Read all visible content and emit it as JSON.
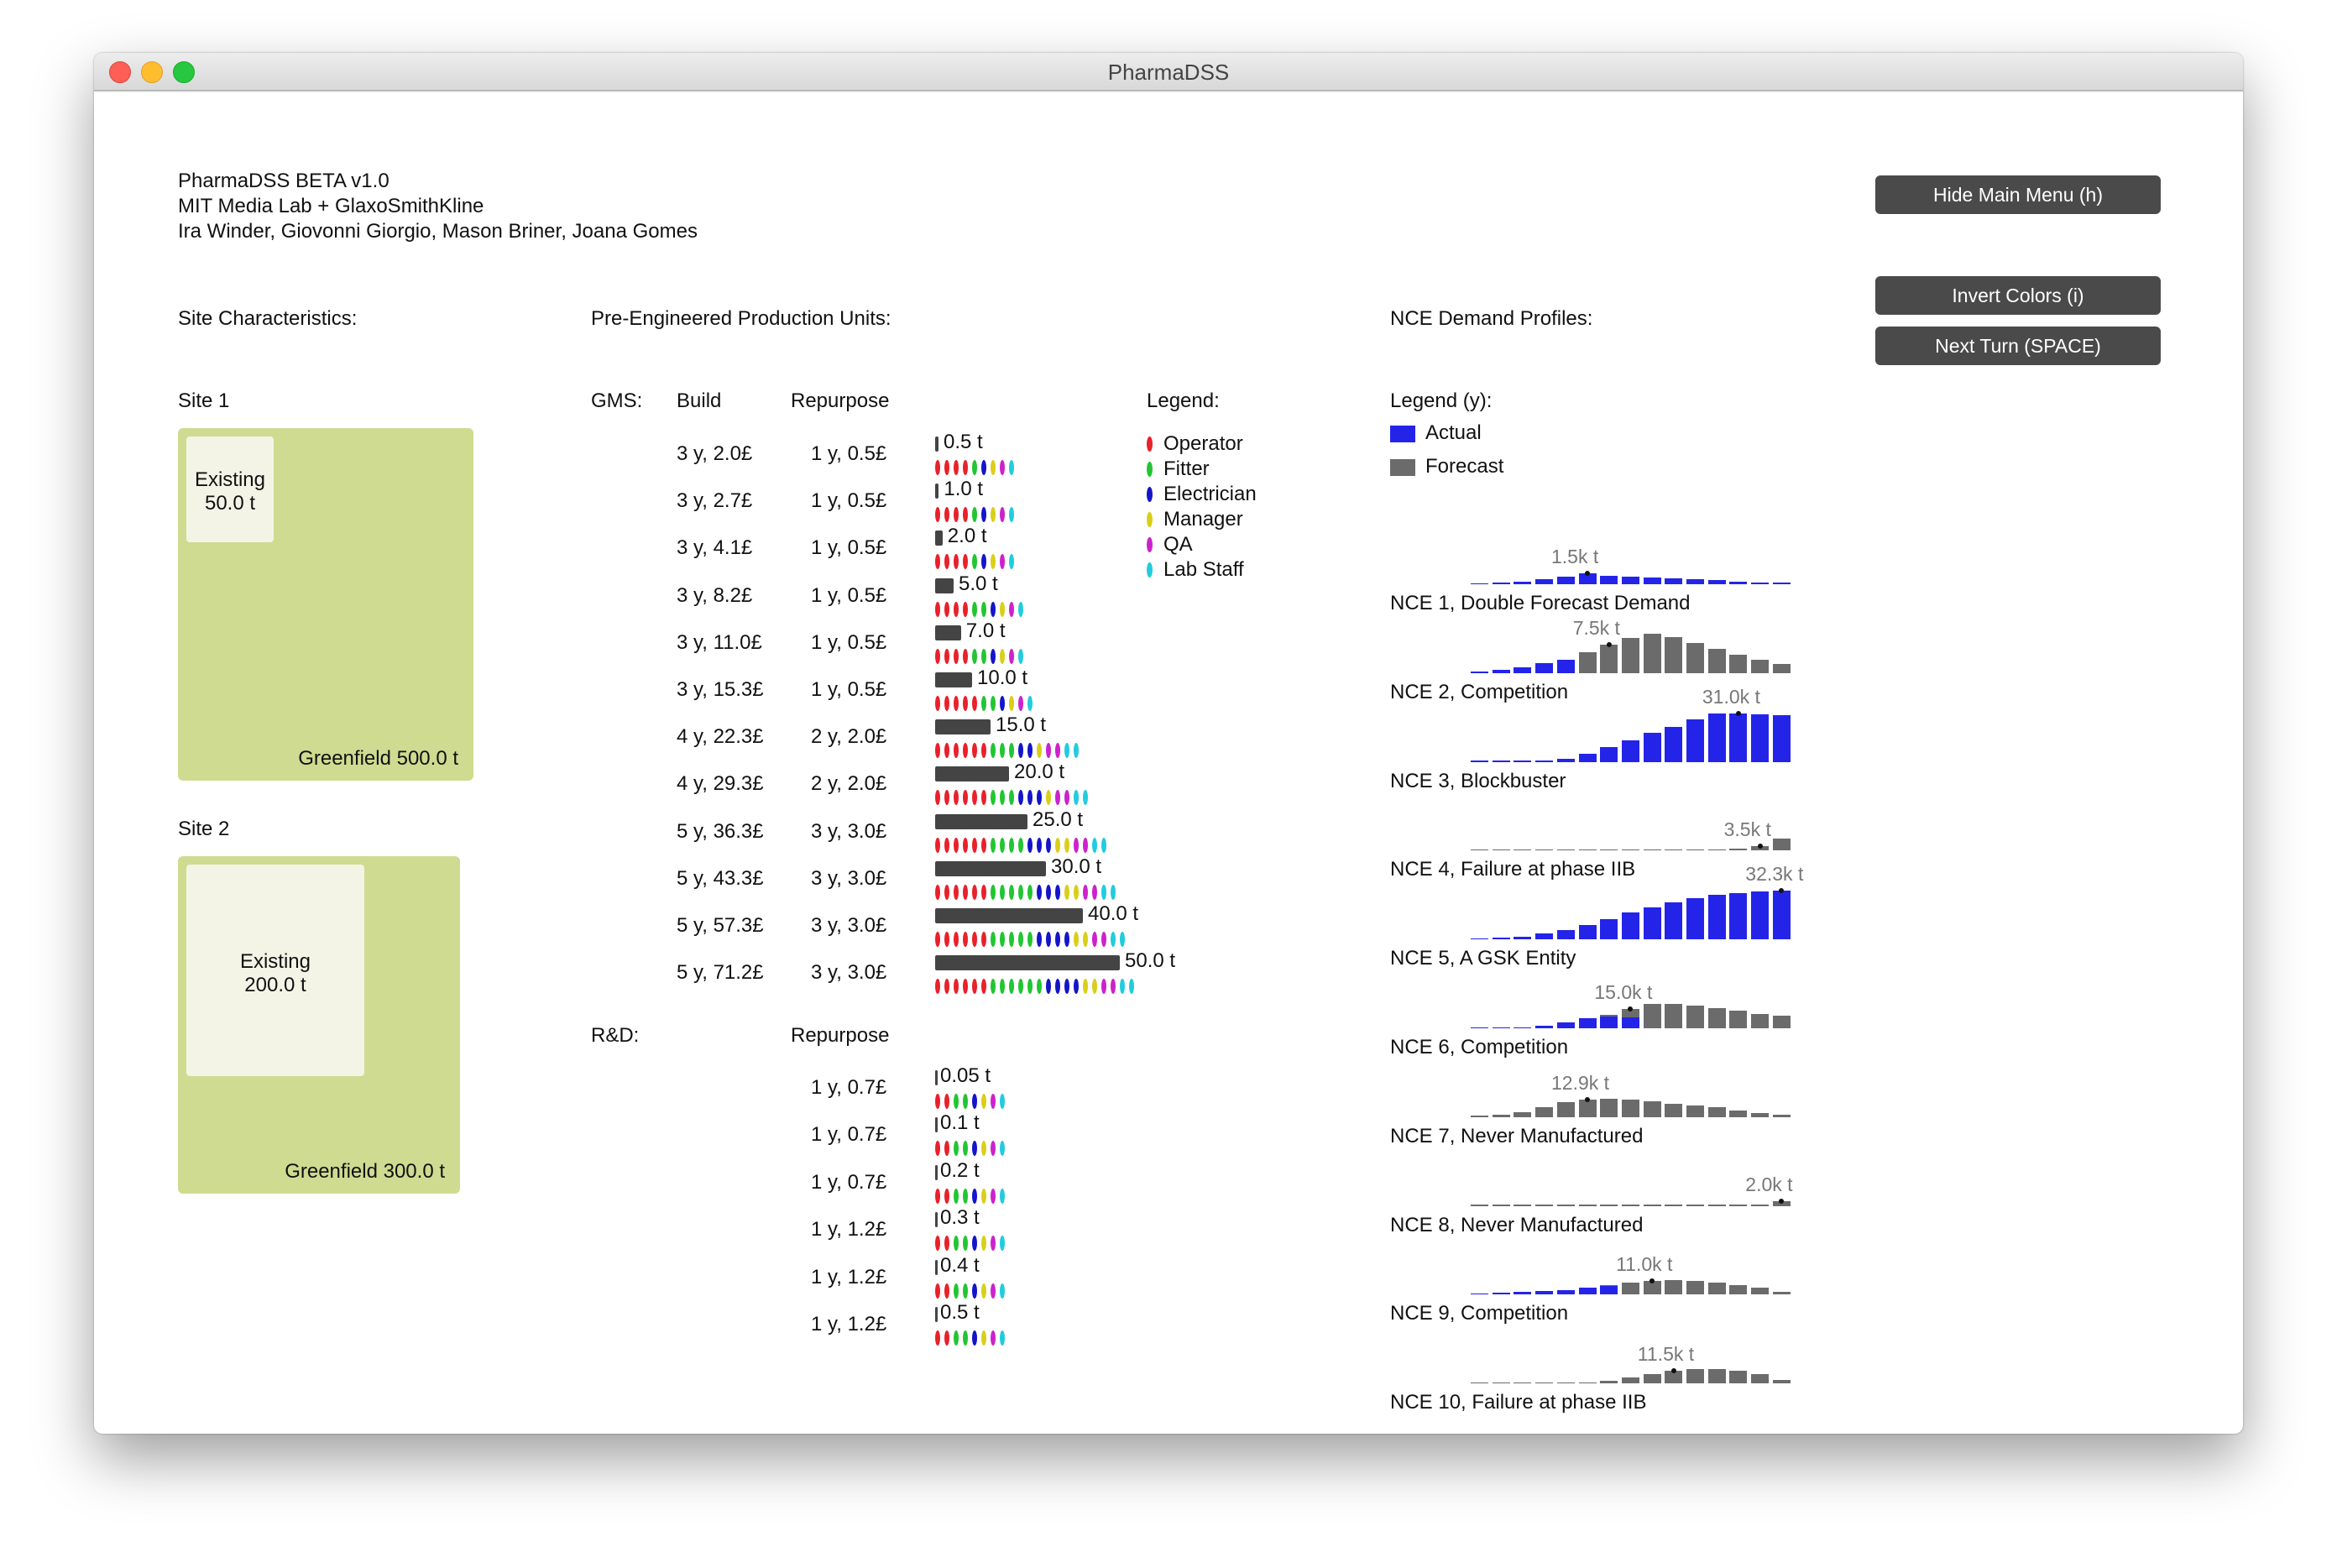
{
  "window": {
    "title": "PharmaDSS"
  },
  "header": {
    "lines": [
      "PharmaDSS BETA v1.0",
      "MIT Media Lab + GlaxoSmithKline",
      "Ira Winder, Giovonni Giorgio, Mason Briner, Joana Gomes"
    ]
  },
  "buttons": {
    "hide_menu": "Hide Main Menu (h)",
    "invert": "Invert Colors (i)",
    "next_turn": "Next Turn (SPACE)"
  },
  "sites": {
    "heading": "Site Characteristics:",
    "items": [
      {
        "label": "Site 1",
        "existing_label": "Existing",
        "existing_value": "50.0 t",
        "greenfield": "Greenfield 500.0 t"
      },
      {
        "label": "Site 2",
        "existing_label": "Existing",
        "existing_value": "200.0 t",
        "greenfield": "Greenfield 300.0 t"
      }
    ]
  },
  "units": {
    "heading": "Pre-Engineered Production Units:",
    "gms_label": "GMS:",
    "build_header": "Build",
    "repurpose_header": "Repurpose",
    "rd_label": "R&D:",
    "rd_repurpose_header": "Repurpose",
    "gms": [
      {
        "build": "3 y, 2.0£",
        "repurpose": "1 y, 0.5£",
        "capacity": "0.5 t",
        "cap": 0.5,
        "staff": [
          4,
          1,
          1,
          1,
          1,
          1
        ]
      },
      {
        "build": "3 y, 2.7£",
        "repurpose": "1 y, 0.5£",
        "capacity": "1.0 t",
        "cap": 1.0,
        "staff": [
          4,
          1,
          1,
          1,
          1,
          1
        ]
      },
      {
        "build": "3 y, 4.1£",
        "repurpose": "1 y, 0.5£",
        "capacity": "2.0 t",
        "cap": 2.0,
        "staff": [
          4,
          1,
          1,
          1,
          1,
          1
        ]
      },
      {
        "build": "3 y, 8.2£",
        "repurpose": "1 y, 0.5£",
        "capacity": "5.0 t",
        "cap": 5.0,
        "staff": [
          4,
          2,
          1,
          1,
          1,
          1
        ]
      },
      {
        "build": "3 y, 11.0£",
        "repurpose": "1 y, 0.5£",
        "capacity": "7.0 t",
        "cap": 7.0,
        "staff": [
          4,
          2,
          1,
          1,
          1,
          1
        ]
      },
      {
        "build": "3 y, 15.3£",
        "repurpose": "1 y, 0.5£",
        "capacity": "10.0 t",
        "cap": 10.0,
        "staff": [
          5,
          2,
          1,
          1,
          1,
          1
        ]
      },
      {
        "build": "4 y, 22.3£",
        "repurpose": "2 y, 2.0£",
        "capacity": "15.0 t",
        "cap": 15.0,
        "staff": [
          6,
          3,
          2,
          1,
          2,
          2
        ]
      },
      {
        "build": "4 y, 29.3£",
        "repurpose": "2 y, 2.0£",
        "capacity": "20.0 t",
        "cap": 20.0,
        "staff": [
          6,
          3,
          3,
          1,
          2,
          2
        ]
      },
      {
        "build": "5 y, 36.3£",
        "repurpose": "3 y, 3.0£",
        "capacity": "25.0 t",
        "cap": 25.0,
        "staff": [
          6,
          4,
          3,
          2,
          2,
          2
        ]
      },
      {
        "build": "5 y, 43.3£",
        "repurpose": "3 y, 3.0£",
        "capacity": "30.0 t",
        "cap": 30.0,
        "staff": [
          6,
          5,
          3,
          2,
          2,
          2
        ]
      },
      {
        "build": "5 y, 57.3£",
        "repurpose": "3 y, 3.0£",
        "capacity": "40.0 t",
        "cap": 40.0,
        "staff": [
          6,
          5,
          4,
          2,
          2,
          2
        ]
      },
      {
        "build": "5 y, 71.2£",
        "repurpose": "3 y, 3.0£",
        "capacity": "50.0 t",
        "cap": 50.0,
        "staff": [
          6,
          6,
          4,
          2,
          2,
          2
        ]
      }
    ],
    "rd": [
      {
        "repurpose": "1 y, 0.7£",
        "capacity": "0.05 t",
        "staff": [
          2,
          2,
          1,
          1,
          1,
          1
        ]
      },
      {
        "repurpose": "1 y, 0.7£",
        "capacity": "0.1 t",
        "staff": [
          2,
          2,
          1,
          1,
          1,
          1
        ]
      },
      {
        "repurpose": "1 y, 0.7£",
        "capacity": "0.2 t",
        "staff": [
          2,
          2,
          1,
          1,
          1,
          1
        ]
      },
      {
        "repurpose": "1 y, 1.2£",
        "capacity": "0.3 t",
        "staff": [
          2,
          2,
          1,
          1,
          1,
          1
        ]
      },
      {
        "repurpose": "1 y, 1.2£",
        "capacity": "0.4 t",
        "staff": [
          2,
          2,
          1,
          1,
          1,
          1
        ]
      },
      {
        "repurpose": "1 y, 1.2£",
        "capacity": "0.5 t",
        "staff": [
          2,
          2,
          1,
          1,
          1,
          1
        ]
      }
    ]
  },
  "legend": {
    "title": "Legend:",
    "items": [
      {
        "name": "Operator",
        "color": "#e8212a"
      },
      {
        "name": "Fitter",
        "color": "#22c532"
      },
      {
        "name": "Electrician",
        "color": "#1414c8"
      },
      {
        "name": "Manager",
        "color": "#d9cf1a"
      },
      {
        "name": "QA",
        "color": "#cc22cc"
      },
      {
        "name": "Lab Staff",
        "color": "#22ccdd"
      }
    ]
  },
  "demand": {
    "heading": "NCE Demand Profiles:",
    "legend_title": "Legend (y):",
    "actual_label": "Actual",
    "forecast_label": "Forecast",
    "actual_color": "#2424e8",
    "forecast_color": "#6b6b6b",
    "profiles": [
      {
        "name": "NCE 1, Double Forecast Demand",
        "peak": "1.5k t",
        "actual": [
          0.02,
          0.04,
          0.06,
          0.1,
          0.16,
          0.22,
          0.18,
          0.16,
          0.14,
          0.12,
          0.1,
          0.08,
          0.06,
          0.04,
          0.03
        ],
        "forecast": [],
        "marker": 5
      },
      {
        "name": "NCE 2, Competition",
        "peak": "7.5k t",
        "actual": [
          0.03,
          0.06,
          0.12,
          0.2,
          0.28
        ],
        "forecast": [
          0.03,
          0.06,
          0.12,
          0.2,
          0.28,
          0.42,
          0.58,
          0.72,
          0.8,
          0.74,
          0.62,
          0.5,
          0.38,
          0.28,
          0.18
        ],
        "marker": 6
      },
      {
        "name": "NCE 3, Blockbuster",
        "peak": "31.0k t",
        "actual": [
          0.0,
          0.0,
          0.01,
          0.03,
          0.07,
          0.16,
          0.3,
          0.45,
          0.6,
          0.72,
          0.88,
          1.0,
          1.0,
          0.98,
          0.96
        ],
        "forecast": [],
        "marker": 12
      },
      {
        "name": "NCE 4, Failure at phase IIB",
        "peak": "3.5k t",
        "actual": [],
        "forecast": [
          0,
          0,
          0,
          0,
          0,
          0,
          0,
          0,
          0,
          0,
          0,
          0,
          0.05,
          0.1,
          0.25
        ],
        "marker": 13
      },
      {
        "name": "NCE 5, A GSK Entity",
        "peak": "32.3k t",
        "actual": [
          0.01,
          0.03,
          0.06,
          0.12,
          0.2,
          0.3,
          0.42,
          0.55,
          0.66,
          0.76,
          0.85,
          0.92,
          0.96,
          0.98,
          1.0
        ],
        "forecast": [],
        "marker": 14
      },
      {
        "name": "NCE 6, Competition",
        "peak": "15.0k t",
        "actual": [
          0.0,
          0.01,
          0.02,
          0.05,
          0.12,
          0.2,
          0.24,
          0.22
        ],
        "forecast": [
          0.0,
          0.01,
          0.02,
          0.05,
          0.12,
          0.2,
          0.28,
          0.4,
          0.5,
          0.5,
          0.46,
          0.42,
          0.36,
          0.3,
          0.26
        ],
        "marker": 7
      },
      {
        "name": "NCE 7, Never Manufactured",
        "peak": "12.9k t",
        "actual": [],
        "forecast": [
          0.02,
          0.04,
          0.1,
          0.2,
          0.3,
          0.36,
          0.38,
          0.36,
          0.32,
          0.28,
          0.24,
          0.2,
          0.14,
          0.08,
          0.04
        ],
        "marker": 5
      },
      {
        "name": "NCE 8, Never Manufactured",
        "peak": "2.0k t",
        "actual": [],
        "forecast": [
          0,
          0,
          0,
          0,
          0,
          0,
          0,
          0,
          0,
          0,
          0,
          0,
          0,
          0.02,
          0.1
        ],
        "marker": 14
      },
      {
        "name": "NCE 9, Competition",
        "peak": "11.0k t",
        "actual": [
          0.02,
          0.04,
          0.06,
          0.08,
          0.1,
          0.14,
          0.18
        ],
        "forecast": [
          0.02,
          0.04,
          0.06,
          0.08,
          0.1,
          0.14,
          0.2,
          0.24,
          0.28,
          0.3,
          0.28,
          0.24,
          0.2,
          0.14,
          0.06
        ],
        "marker": 8
      },
      {
        "name": "NCE 10, Failure at phase IIB",
        "peak": "11.5k t",
        "actual": [],
        "forecast": [
          0,
          0,
          0,
          0,
          0,
          0.02,
          0.06,
          0.12,
          0.2,
          0.26,
          0.3,
          0.3,
          0.26,
          0.2,
          0.08
        ],
        "marker": 9
      }
    ]
  }
}
